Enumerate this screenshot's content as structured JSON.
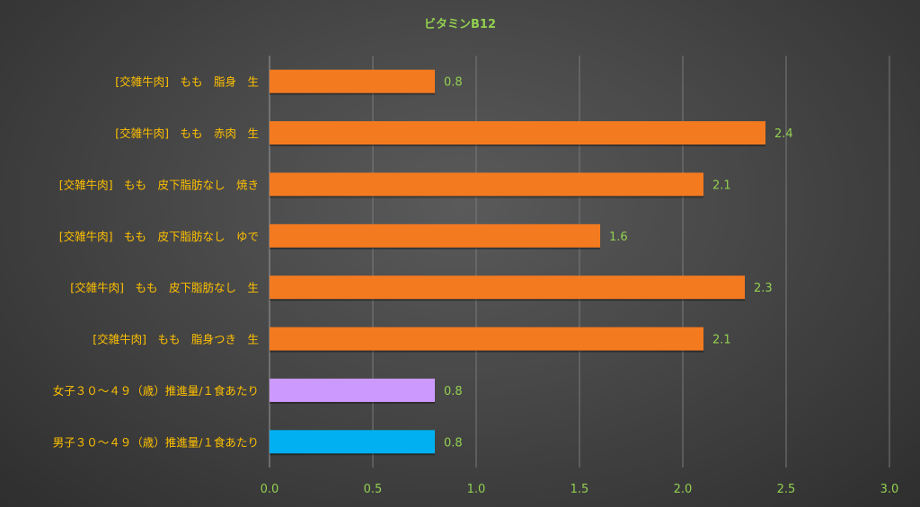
{
  "chart_data": {
    "type": "bar",
    "orientation": "horizontal",
    "title": "ビタミンB12",
    "xlabel": "",
    "ylabel": "",
    "xlim": [
      0,
      3.0
    ],
    "ticks": [
      "0.0",
      "0.5",
      "1.0",
      "1.5",
      "2.0",
      "2.5",
      "3.0"
    ],
    "tick_values": [
      0,
      0.5,
      1.0,
      1.5,
      2.0,
      2.5,
      3.0
    ],
    "grid": true,
    "legend": "none",
    "bars": [
      {
        "label": "[交雑牛肉]　もも　脂身　生",
        "value": 0.8,
        "value_label": "0.8",
        "color": "#f47a20"
      },
      {
        "label": "[交雑牛肉]　もも　赤肉　生",
        "value": 2.4,
        "value_label": "2.4",
        "color": "#f47a20"
      },
      {
        "label": "[交雑牛肉]　もも　皮下脂肪なし　焼き",
        "value": 2.1,
        "value_label": "2.1",
        "color": "#f47a20"
      },
      {
        "label": "[交雑牛肉]　もも　皮下脂肪なし　ゆで",
        "value": 1.6,
        "value_label": "1.6",
        "color": "#f47a20"
      },
      {
        "label": "[交雑牛肉]　もも　皮下脂肪なし　生",
        "value": 2.3,
        "value_label": "2.3",
        "color": "#f47a20"
      },
      {
        "label": "[交雑牛肉]　もも　脂身つき　生",
        "value": 2.1,
        "value_label": "2.1",
        "color": "#f47a20"
      },
      {
        "label": "女子３０～４９（歳）推進量/１食あたり",
        "value": 0.8,
        "value_label": "0.8",
        "color": "#cc99ff"
      },
      {
        "label": "男子３０～４９（歳）推進量/１食あたり",
        "value": 0.8,
        "value_label": "0.8",
        "color": "#00b0f0"
      }
    ]
  }
}
